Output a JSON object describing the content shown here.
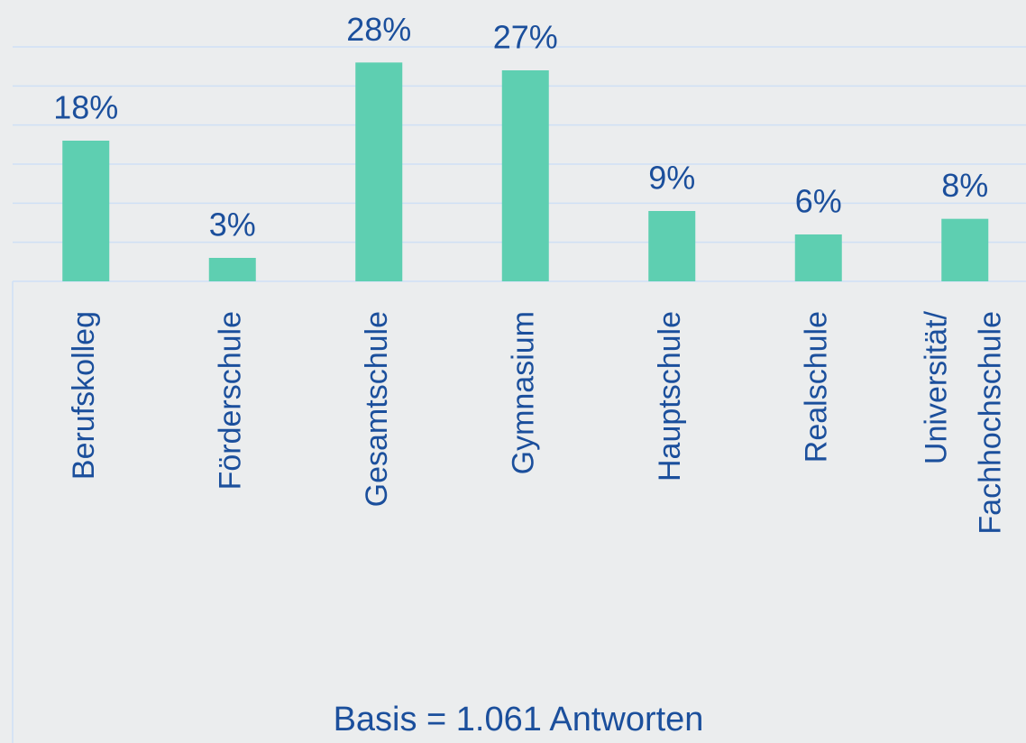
{
  "chart_data": {
    "type": "bar",
    "categories": [
      "Berufskolleg",
      "Förderschule",
      "Gesamtschule",
      "Gymnasium",
      "Hauptschule",
      "Realschule",
      "Universität/\nFachhochschule"
    ],
    "values": [
      18,
      3,
      28,
      27,
      9,
      6,
      8
    ],
    "value_labels": [
      "18%",
      "3%",
      "28%",
      "27%",
      "9%",
      "6%",
      "8%"
    ],
    "color": "#5ecfb1",
    "ylim": [
      0,
      30
    ],
    "yticks": [
      0,
      5,
      10,
      15,
      20,
      25,
      30
    ],
    "grid": true,
    "annotation": "Basis = 1.061 Antworten"
  }
}
